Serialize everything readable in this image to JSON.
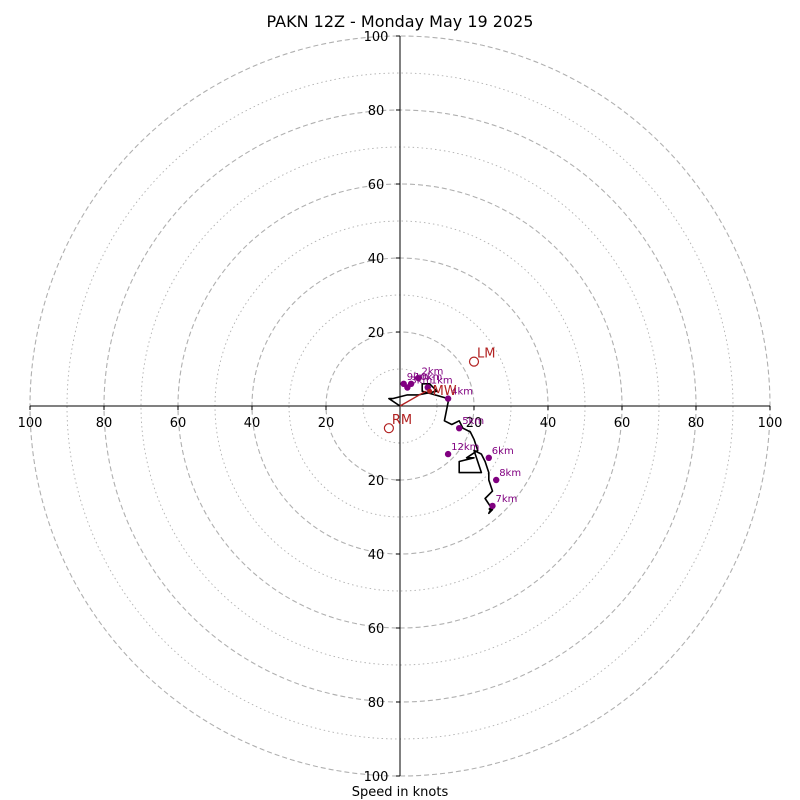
{
  "chart_data": {
    "type": "line",
    "chart_kind": "hodograph",
    "title": "PAKN 12Z - Monday May 19 2025",
    "xlabel": "Speed in knots",
    "ylabel": "",
    "xlim": [
      -100,
      100
    ],
    "ylim": [
      -100,
      100
    ],
    "ring_labels": [
      "20",
      "40",
      "60",
      "80",
      "100"
    ],
    "x_tick_labels": [
      "100",
      "80",
      "60",
      "40",
      "20",
      "20",
      "40",
      "60",
      "80",
      "100"
    ],
    "y_tick_labels": [
      "100",
      "80",
      "60",
      "40",
      "20",
      "20",
      "40",
      "60",
      "80",
      "100"
    ],
    "grid": true,
    "colors": {
      "trace": "#000000",
      "height_markers": "#800080",
      "storm_motion": "#b22222",
      "grid": "#b0b0b0"
    },
    "trace": {
      "u": [
        0,
        -3,
        -2,
        2,
        5,
        10,
        8,
        6,
        6,
        13,
        13,
        12,
        14,
        16,
        17,
        19,
        20,
        21,
        18,
        20,
        16,
        16,
        22,
        20,
        22,
        23,
        24,
        24,
        25,
        23,
        25,
        24,
        25,
        24
      ],
      "v": [
        0,
        2,
        2,
        3,
        3,
        4,
        6,
        6,
        4,
        2,
        1,
        -4,
        -5,
        -4,
        -6,
        -7,
        -9,
        -12,
        -14,
        -14,
        -15,
        -18,
        -18,
        -12,
        -13,
        -15,
        -18,
        -20,
        -23,
        -25,
        -28,
        -29,
        -27,
        -28
      ]
    },
    "height_markers": [
      {
        "label": "1km",
        "u": 7.5,
        "v": 5
      },
      {
        "label": "2km",
        "u": 5,
        "v": 7.5
      },
      {
        "label": "3km",
        "u": 2,
        "v": 5
      },
      {
        "label": "4km",
        "u": 13,
        "v": 2
      },
      {
        "label": "5km",
        "u": 16,
        "v": -6
      },
      {
        "label": "6km",
        "u": 24,
        "v": -14
      },
      {
        "label": "7km",
        "u": 25,
        "v": -27
      },
      {
        "label": "8km",
        "u": 26,
        "v": -20
      },
      {
        "label": "9km",
        "u": 1,
        "v": 6
      },
      {
        "label": "10km",
        "u": 3,
        "v": 6
      },
      {
        "label": "12km",
        "u": 13,
        "v": -13
      }
    ],
    "storm_motion": [
      {
        "label": "LM",
        "u": 20,
        "v": 12
      },
      {
        "label": "RM",
        "u": -3,
        "v": -6
      },
      {
        "label": "MW",
        "u": 8,
        "v": 4
      }
    ],
    "shear_vector": {
      "from": [
        0,
        0
      ],
      "to": [
        7,
        4
      ]
    }
  }
}
